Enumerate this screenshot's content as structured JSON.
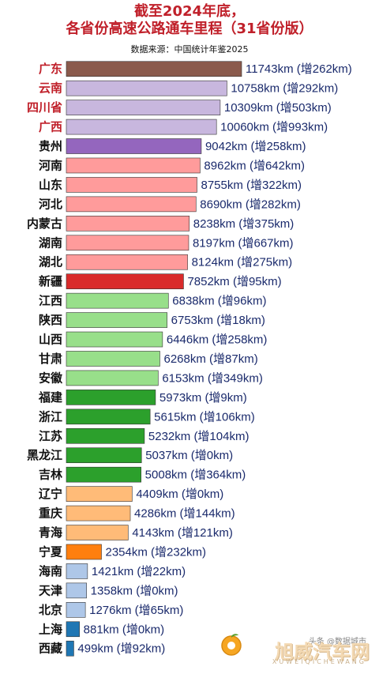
{
  "title_line1": "截至2024年底，",
  "title_line2": "各省份高速公路通车里程（31省份版）",
  "source": "数据来源：中国统计年鉴2025",
  "watermark": {
    "brand": "旭威汽车网",
    "pinyin": "XUWEIQICHEWANG",
    "small": "头条 @数据城市"
  },
  "chart_data": {
    "type": "bar",
    "orientation": "horizontal",
    "unit": "km",
    "xlim": [
      0,
      12000
    ],
    "categories": [
      "广东",
      "云南",
      "四川省",
      "广西",
      "贵州",
      "河南",
      "山东",
      "河北",
      "内蒙古",
      "湖南",
      "湖北",
      "新疆",
      "江西",
      "陕西",
      "山西",
      "甘肃",
      "安徽",
      "福建",
      "浙江",
      "江苏",
      "黑龙江",
      "吉林",
      "辽宁",
      "重庆",
      "青海",
      "宁夏",
      "海南",
      "天津",
      "北京",
      "上海",
      "西藏"
    ],
    "values": [
      11743,
      10758,
      10309,
      10060,
      9042,
      8962,
      8755,
      8690,
      8238,
      8197,
      8124,
      7852,
      6838,
      6753,
      6446,
      6268,
      6153,
      5973,
      5615,
      5232,
      5037,
      5008,
      4409,
      4286,
      4143,
      2354,
      1421,
      1358,
      1276,
      881,
      499
    ],
    "increase": [
      262,
      292,
      503,
      993,
      258,
      642,
      322,
      282,
      375,
      667,
      275,
      95,
      96,
      18,
      258,
      87,
      349,
      9,
      106,
      104,
      0,
      364,
      0,
      144,
      121,
      232,
      22,
      0,
      65,
      0,
      92
    ],
    "labels": [
      "11743km (增262km)",
      "10758km (增292km)",
      "10309km (增503km)",
      "10060km (增993km)",
      "9042km (增258km)",
      "8962km (增642km)",
      "8755km (增322km)",
      "8690km (增282km)",
      "8238km (增375km)",
      "8197km (增667km)",
      "8124km (增275km)",
      "7852km (增95km)",
      "6838km (增96km)",
      "6753km (增18km)",
      "6446km (增258km)",
      "6268km (增87km)",
      "6153km (增349km)",
      "5973km (增9km)",
      "5615km (增106km)",
      "5232km (增104km)",
      "5037km (增0km)",
      "5008km (增364km)",
      "4409km (增0km)",
      "4286km (增144km)",
      "4143km (增121km)",
      "2354km (增232km)",
      "1421km (增22km)",
      "1358km (增0km)",
      "1276km (增65km)",
      "881km (增0km)",
      "499km (增92km)"
    ],
    "colors": [
      "#8a5a4c",
      "#c8b7de",
      "#c8b7de",
      "#c8b7de",
      "#9466be",
      "#ff9b9b",
      "#ff9b9b",
      "#ff9b9b",
      "#ff9b9b",
      "#ff9b9b",
      "#ff9b9b",
      "#d92b2b",
      "#98df8a",
      "#98df8a",
      "#98df8a",
      "#98df8a",
      "#98df8a",
      "#2ca02c",
      "#2ca02c",
      "#2ca02c",
      "#2ca02c",
      "#2ca02c",
      "#ffbb78",
      "#ffbb78",
      "#ffbb78",
      "#ff7f0e",
      "#aec7e8",
      "#aec7e8",
      "#aec7e8",
      "#1f77b4",
      "#1f77b4"
    ],
    "label_colors": [
      "#c0202a",
      "#c0202a",
      "#c0202a",
      "#c0202a",
      "#111111",
      "#111111",
      "#111111",
      "#111111",
      "#111111",
      "#111111",
      "#111111",
      "#111111",
      "#111111",
      "#111111",
      "#111111",
      "#111111",
      "#111111",
      "#111111",
      "#111111",
      "#111111",
      "#111111",
      "#111111",
      "#111111",
      "#111111",
      "#111111",
      "#111111",
      "#111111",
      "#111111",
      "#111111",
      "#111111",
      "#111111"
    ]
  }
}
